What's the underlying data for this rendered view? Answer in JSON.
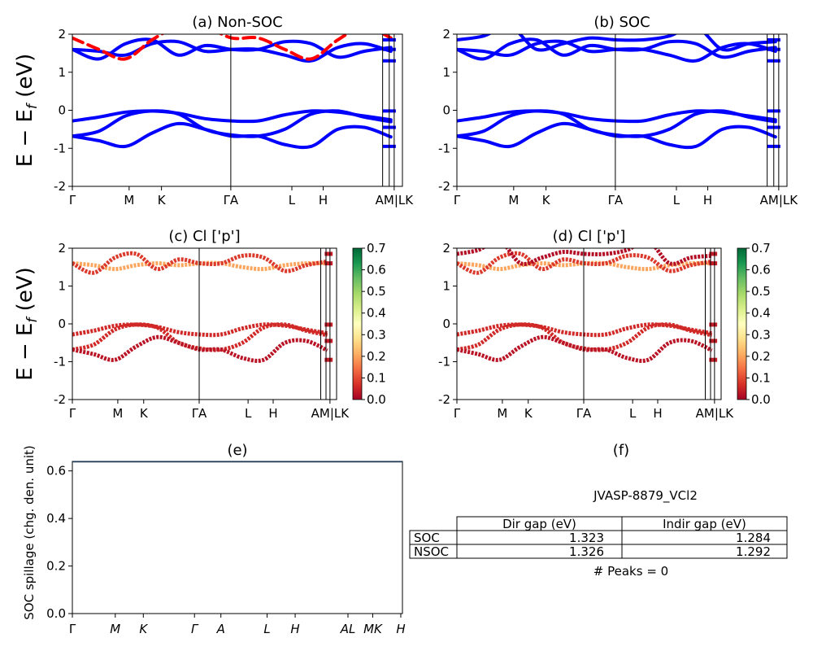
{
  "colors": {
    "blue_band": "#0000ff",
    "red_band": "#ff0000",
    "frame": "#000000",
    "spillage_line": "#1f3b5a"
  },
  "chart_data": [
    {
      "id": "a",
      "type": "line",
      "title": "(a) Non-SOC",
      "ylabel": "E − E_f (eV)",
      "ylim": [
        -2,
        2
      ],
      "yticks": [
        -2,
        -1,
        0,
        1,
        2
      ],
      "xticks": [
        "Γ",
        "M",
        "K",
        "ΓA",
        "L",
        "H",
        "AM|LK"
      ],
      "series": [
        {
          "color": "#0000ff",
          "style": "solid",
          "approx_bands": [
            [
              -0.28,
              -0.18,
              -0.05,
              -0.02,
              -0.08,
              -0.22,
              -0.28,
              -0.28,
              -0.12,
              -0.02,
              -0.05,
              -0.15,
              -0.25
            ],
            [
              -0.68,
              -0.55,
              -0.15,
              -0.02,
              -0.1,
              -0.5,
              -0.65,
              -0.68,
              -0.5,
              -0.1,
              -0.02,
              -0.18,
              -0.3
            ],
            [
              -0.68,
              -0.8,
              -0.95,
              -0.6,
              -0.35,
              -0.5,
              -0.68,
              -0.68,
              -0.9,
              -0.95,
              -0.5,
              -0.45,
              -0.7
            ],
            [
              1.6,
              1.55,
              1.45,
              1.75,
              1.8,
              1.55,
              1.6,
              1.6,
              1.45,
              1.3,
              1.65,
              1.75,
              1.55
            ],
            [
              1.6,
              1.35,
              1.75,
              1.85,
              1.45,
              1.7,
              1.6,
              1.6,
              1.8,
              1.75,
              1.4,
              1.55,
              1.65
            ]
          ]
        },
        {
          "color": "#ff0000",
          "style": "dashed",
          "approx_bands": [
            [
              1.9,
              1.6,
              1.35,
              1.85,
              2.2,
              2.2,
              1.9,
              1.9,
              1.6,
              1.35,
              1.85,
              2.2,
              1.9
            ]
          ]
        }
      ]
    },
    {
      "id": "b",
      "type": "line",
      "title": "(b) SOC",
      "ylim": [
        -2,
        2
      ],
      "yticks": [
        -2,
        -1,
        0,
        1,
        2
      ],
      "xticks": [
        "Γ",
        "M",
        "K",
        "ΓA",
        "L",
        "H",
        "AM|LK"
      ],
      "series": [
        {
          "color": "#0000ff",
          "style": "solid",
          "approx_bands": [
            [
              -0.28,
              -0.18,
              -0.05,
              -0.02,
              -0.08,
              -0.22,
              -0.28,
              -0.28,
              -0.12,
              -0.02,
              -0.05,
              -0.15,
              -0.25
            ],
            [
              -0.68,
              -0.55,
              -0.15,
              -0.02,
              -0.1,
              -0.5,
              -0.65,
              -0.68,
              -0.5,
              -0.1,
              -0.02,
              -0.18,
              -0.3
            ],
            [
              -0.68,
              -0.8,
              -0.95,
              -0.6,
              -0.35,
              -0.5,
              -0.68,
              -0.68,
              -0.9,
              -0.95,
              -0.5,
              -0.45,
              -0.7
            ],
            [
              1.6,
              1.55,
              1.45,
              1.75,
              1.8,
              1.55,
              1.6,
              1.6,
              1.45,
              1.3,
              1.65,
              1.75,
              1.55
            ],
            [
              1.6,
              1.35,
              1.75,
              1.85,
              1.45,
              1.7,
              1.6,
              1.6,
              1.8,
              1.75,
              1.4,
              1.55,
              1.65
            ],
            [
              1.85,
              1.95,
              2.2,
              1.6,
              1.75,
              1.9,
              1.85,
              1.85,
              1.95,
              2.2,
              1.6,
              1.75,
              1.8
            ]
          ]
        }
      ]
    },
    {
      "id": "c",
      "type": "scatter",
      "title": "(c)  Cl ['p']",
      "ylabel": "E − E_f (eV)",
      "ylim": [
        -2,
        2
      ],
      "yticks": [
        -2,
        -1,
        0,
        1,
        2
      ],
      "xticks": [
        "Γ",
        "M",
        "K",
        "ΓA",
        "L",
        "H",
        "AM|LK"
      ],
      "colorbar": {
        "min": 0.0,
        "max": 0.7,
        "ticks": [
          "0.0",
          "0.1",
          "0.2",
          "0.3",
          "0.4",
          "0.5",
          "0.6",
          "0.7"
        ],
        "colormap": "RdYlGn"
      },
      "approx_bands": [
        {
          "weight": 0.06,
          "e": [
            -0.28,
            -0.18,
            -0.05,
            -0.02,
            -0.08,
            -0.22,
            -0.28,
            -0.28,
            -0.12,
            -0.02,
            -0.05,
            -0.15,
            -0.25
          ]
        },
        {
          "weight": 0.06,
          "e": [
            -0.68,
            -0.55,
            -0.15,
            -0.02,
            -0.1,
            -0.5,
            -0.65,
            -0.68,
            -0.5,
            -0.1,
            -0.02,
            -0.18,
            -0.3
          ]
        },
        {
          "weight": 0.03,
          "e": [
            -0.68,
            -0.8,
            -0.95,
            -0.6,
            -0.35,
            -0.5,
            -0.68,
            -0.68,
            -0.9,
            -0.95,
            -0.5,
            -0.45,
            -0.7
          ]
        },
        {
          "weight": 0.2,
          "e": [
            1.6,
            1.55,
            1.45,
            1.55,
            1.6,
            1.55,
            1.6,
            1.6,
            1.5,
            1.45,
            1.55,
            1.6,
            1.6
          ]
        },
        {
          "weight": 0.08,
          "e": [
            1.6,
            1.35,
            1.75,
            1.85,
            1.45,
            1.7,
            1.6,
            1.6,
            1.8,
            1.75,
            1.4,
            1.55,
            1.65
          ]
        }
      ]
    },
    {
      "id": "d",
      "type": "scatter",
      "title": "(d) Cl ['p']",
      "ylim": [
        -2,
        2
      ],
      "yticks": [
        -2,
        -1,
        0,
        1,
        2
      ],
      "xticks": [
        "Γ",
        "M",
        "K",
        "ΓA",
        "L",
        "H",
        "AM|LK"
      ],
      "colorbar": {
        "min": 0.0,
        "max": 0.7,
        "ticks": [
          "0.0",
          "0.1",
          "0.2",
          "0.3",
          "0.4",
          "0.5",
          "0.6",
          "0.7"
        ],
        "colormap": "RdYlGn"
      },
      "approx_bands": [
        {
          "weight": 0.06,
          "e": [
            -0.28,
            -0.18,
            -0.05,
            -0.02,
            -0.08,
            -0.22,
            -0.28,
            -0.28,
            -0.12,
            -0.02,
            -0.05,
            -0.15,
            -0.25
          ]
        },
        {
          "weight": 0.06,
          "e": [
            -0.68,
            -0.55,
            -0.15,
            -0.02,
            -0.1,
            -0.5,
            -0.65,
            -0.68,
            -0.5,
            -0.1,
            -0.02,
            -0.18,
            -0.3
          ]
        },
        {
          "weight": 0.03,
          "e": [
            -0.68,
            -0.8,
            -0.95,
            -0.6,
            -0.35,
            -0.5,
            -0.68,
            -0.68,
            -0.9,
            -0.95,
            -0.5,
            -0.45,
            -0.7
          ]
        },
        {
          "weight": 0.2,
          "e": [
            1.6,
            1.55,
            1.45,
            1.55,
            1.6,
            1.55,
            1.6,
            1.6,
            1.5,
            1.45,
            1.55,
            1.6,
            1.6
          ]
        },
        {
          "weight": 0.08,
          "e": [
            1.6,
            1.35,
            1.75,
            1.85,
            1.45,
            1.7,
            1.6,
            1.6,
            1.8,
            1.75,
            1.4,
            1.55,
            1.65
          ]
        },
        {
          "weight": 0.02,
          "e": [
            1.85,
            1.95,
            2.2,
            1.6,
            1.75,
            1.9,
            1.85,
            1.85,
            1.95,
            2.2,
            1.6,
            1.75,
            1.8
          ]
        }
      ]
    },
    {
      "id": "e",
      "type": "line",
      "title": "(e)",
      "ylabel": "SOC spillage (chg. den. unit)",
      "ylim": [
        0,
        0.64
      ],
      "yticks": [
        "0.0",
        "0.2",
        "0.4",
        "0.6"
      ],
      "xticks": [
        "Γ",
        "M",
        "K",
        "Γ",
        "A",
        "L",
        "H",
        "AL",
        "MK",
        "H"
      ],
      "series": [
        {
          "values_constant": 0.0
        }
      ]
    },
    {
      "id": "f",
      "type": "table",
      "title": "(f)",
      "caption": "JVASP-8879_VCl2",
      "columns": [
        "Dir gap (eV)",
        "Indir gap (eV)"
      ],
      "rows": [
        {
          "label": "SOC",
          "values": [
            "1.323",
            "1.284"
          ]
        },
        {
          "label": "NSOC",
          "values": [
            "1.326",
            "1.292"
          ]
        }
      ],
      "footer": "# Peaks = 0"
    }
  ]
}
